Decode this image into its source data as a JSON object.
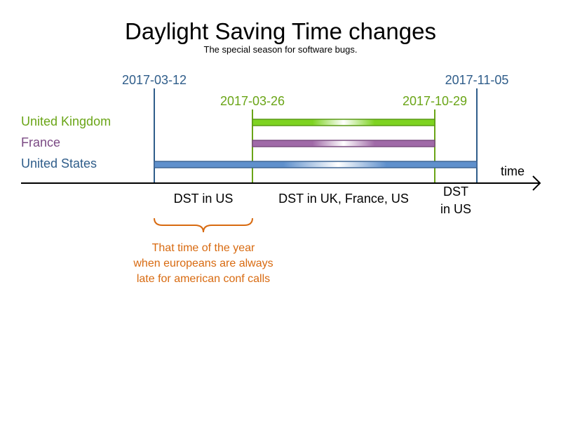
{
  "title": "Daylight Saving Time changes",
  "subtitle": "The special season for software bugs.",
  "dates": {
    "us_start": "2017-03-12",
    "eu_start": "2017-03-26",
    "eu_end": "2017-10-29",
    "us_end": "2017-11-05"
  },
  "rows": [
    {
      "label": "United Kingdom",
      "start": "2017-03-26",
      "end": "2017-10-29",
      "color": "#7ed321",
      "border": "#5a9a16"
    },
    {
      "label": "France",
      "start": "2017-03-26",
      "end": "2017-10-29",
      "color": "#a875ad",
      "border": "#7a4d80"
    },
    {
      "label": "United States",
      "start": "2017-03-12",
      "end": "2017-11-05",
      "color": "#6b9bd2",
      "border": "#3e6594"
    }
  ],
  "axis_label": "time",
  "periods": {
    "us_only_start": "DST in US",
    "all": "DST in UK, France, US",
    "us_only_end_line1": "DST",
    "us_only_end_line2": "in US"
  },
  "annotation": {
    "line1": "That time of the year",
    "line2": "when europeans are always",
    "line3": "late for american conf calls"
  },
  "colors": {
    "us": "#2f5d8a",
    "uk": "#6aa517",
    "france": "#7b4a84",
    "annotation": "#d86a10",
    "axis": "#000000"
  }
}
